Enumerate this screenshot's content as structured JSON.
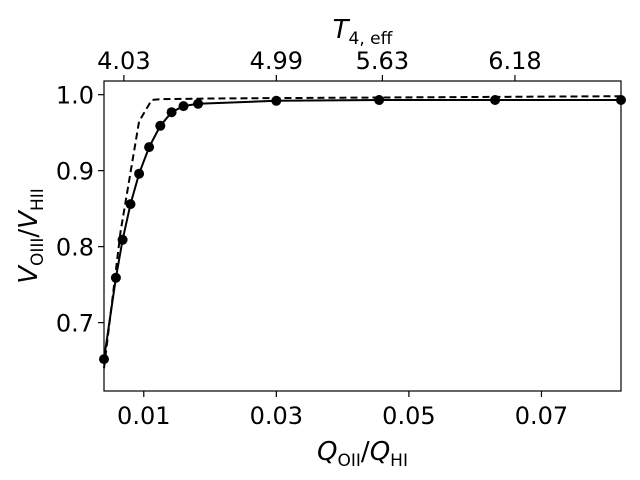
{
  "chart_data": {
    "type": "line",
    "xlabel": {
      "main": "Q",
      "main_sub": "OII",
      "slash": "/",
      "den": "Q",
      "den_sub": "HI"
    },
    "ylabel": {
      "main": "V",
      "main_sub": "OIII",
      "slash": "/",
      "den": "V",
      "den_sub": "HII"
    },
    "top_xlabel": {
      "main": "T",
      "sub": "4, eff"
    },
    "xlim": [
      0.004,
      0.082
    ],
    "ylim": [
      0.61,
      1.018
    ],
    "x_ticks": [
      0.01,
      0.03,
      0.05,
      0.07
    ],
    "x_tick_labels": [
      "0.01",
      "0.03",
      "0.05",
      "0.07"
    ],
    "y_ticks": [
      0.7,
      0.8,
      0.9,
      1.0
    ],
    "y_tick_labels": [
      "0.7",
      "0.8",
      "0.9",
      "1.0"
    ],
    "top_ticks": [
      0.007,
      0.03,
      0.046,
      0.066
    ],
    "top_tick_labels": [
      "4.03",
      "4.99",
      "5.63",
      "6.18"
    ],
    "grid": false,
    "series": [
      {
        "style": "solid-with-markers",
        "color": "#000000",
        "x": [
          0.004,
          0.0058,
          0.0068,
          0.008,
          0.0093,
          0.0108,
          0.0125,
          0.0142,
          0.016,
          0.0182,
          0.03,
          0.0455,
          0.063,
          0.082
        ],
        "y": [
          0.652,
          0.759,
          0.809,
          0.856,
          0.896,
          0.931,
          0.959,
          0.977,
          0.985,
          0.988,
          0.992,
          0.993,
          0.993,
          0.993
        ]
      },
      {
        "style": "dashed",
        "color": "#000000",
        "x": [
          0.004,
          0.0065,
          0.0093,
          0.0112,
          0.0125,
          0.02,
          0.04,
          0.06,
          0.082
        ],
        "y": [
          0.64,
          0.82,
          0.965,
          0.993,
          0.994,
          0.995,
          0.996,
          0.997,
          0.998
        ]
      }
    ]
  }
}
